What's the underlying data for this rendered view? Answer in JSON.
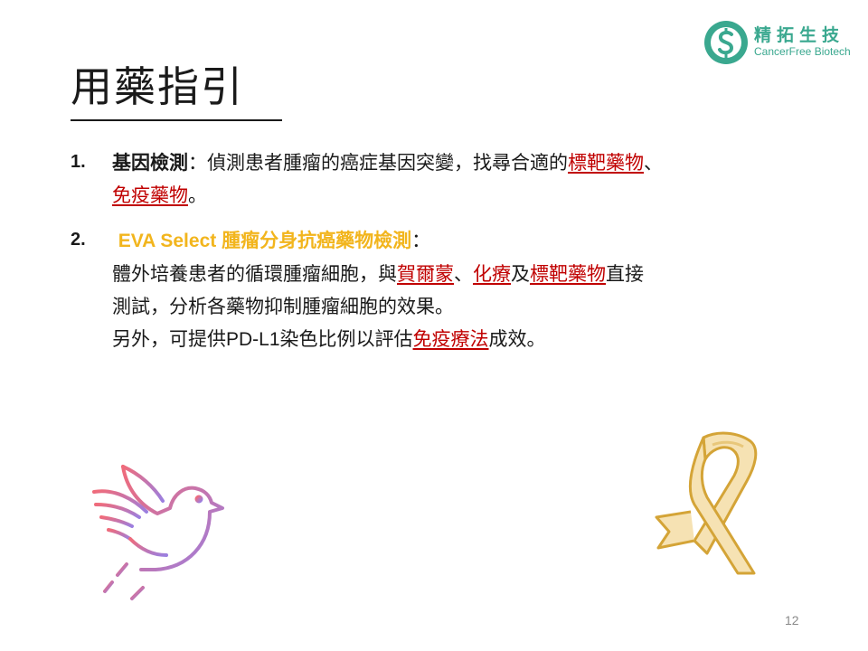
{
  "logo": {
    "cn": "精拓生技",
    "en": "CancerFree Biotech",
    "color": "#3aa88f"
  },
  "title": "用藥指引",
  "items": [
    {
      "number": "1.",
      "heading": "基因檢測",
      "colon": "：",
      "text": "偵測患者腫瘤的癌症基因突變，找尋合適的",
      "link1": "標靶藥物",
      "sep": "、",
      "link2": "免疫藥物",
      "end": "。"
    },
    {
      "number": "2.",
      "heading_latin": "EVA Select ",
      "heading_cn": "腫瘤分身抗癌藥物檢測",
      "colon": "：",
      "line1_text": "體外培養患者的循環腫瘤細胞，與",
      "link_hormone": "賀爾蒙",
      "sep": "、",
      "link_chemo": "化療",
      "and": "及",
      "link_target": "標靶藥物",
      "line1_end": "直接",
      "line2": "測試，分析各藥物抑制腫瘤細胞的效果。",
      "line3_a": "另外，可提供",
      "line3_pdl1": "PD-L1",
      "line3_b": "染色比例以評估",
      "link_immuno": "免疫療法",
      "line3_end": "成效。"
    }
  ],
  "colors": {
    "link": "#c00000",
    "highlight": "#f2b51d",
    "text": "#1a1a1a"
  },
  "icons": {
    "dove": "dove-icon",
    "ribbon": "awareness-ribbon-icon"
  },
  "page_number": "12"
}
